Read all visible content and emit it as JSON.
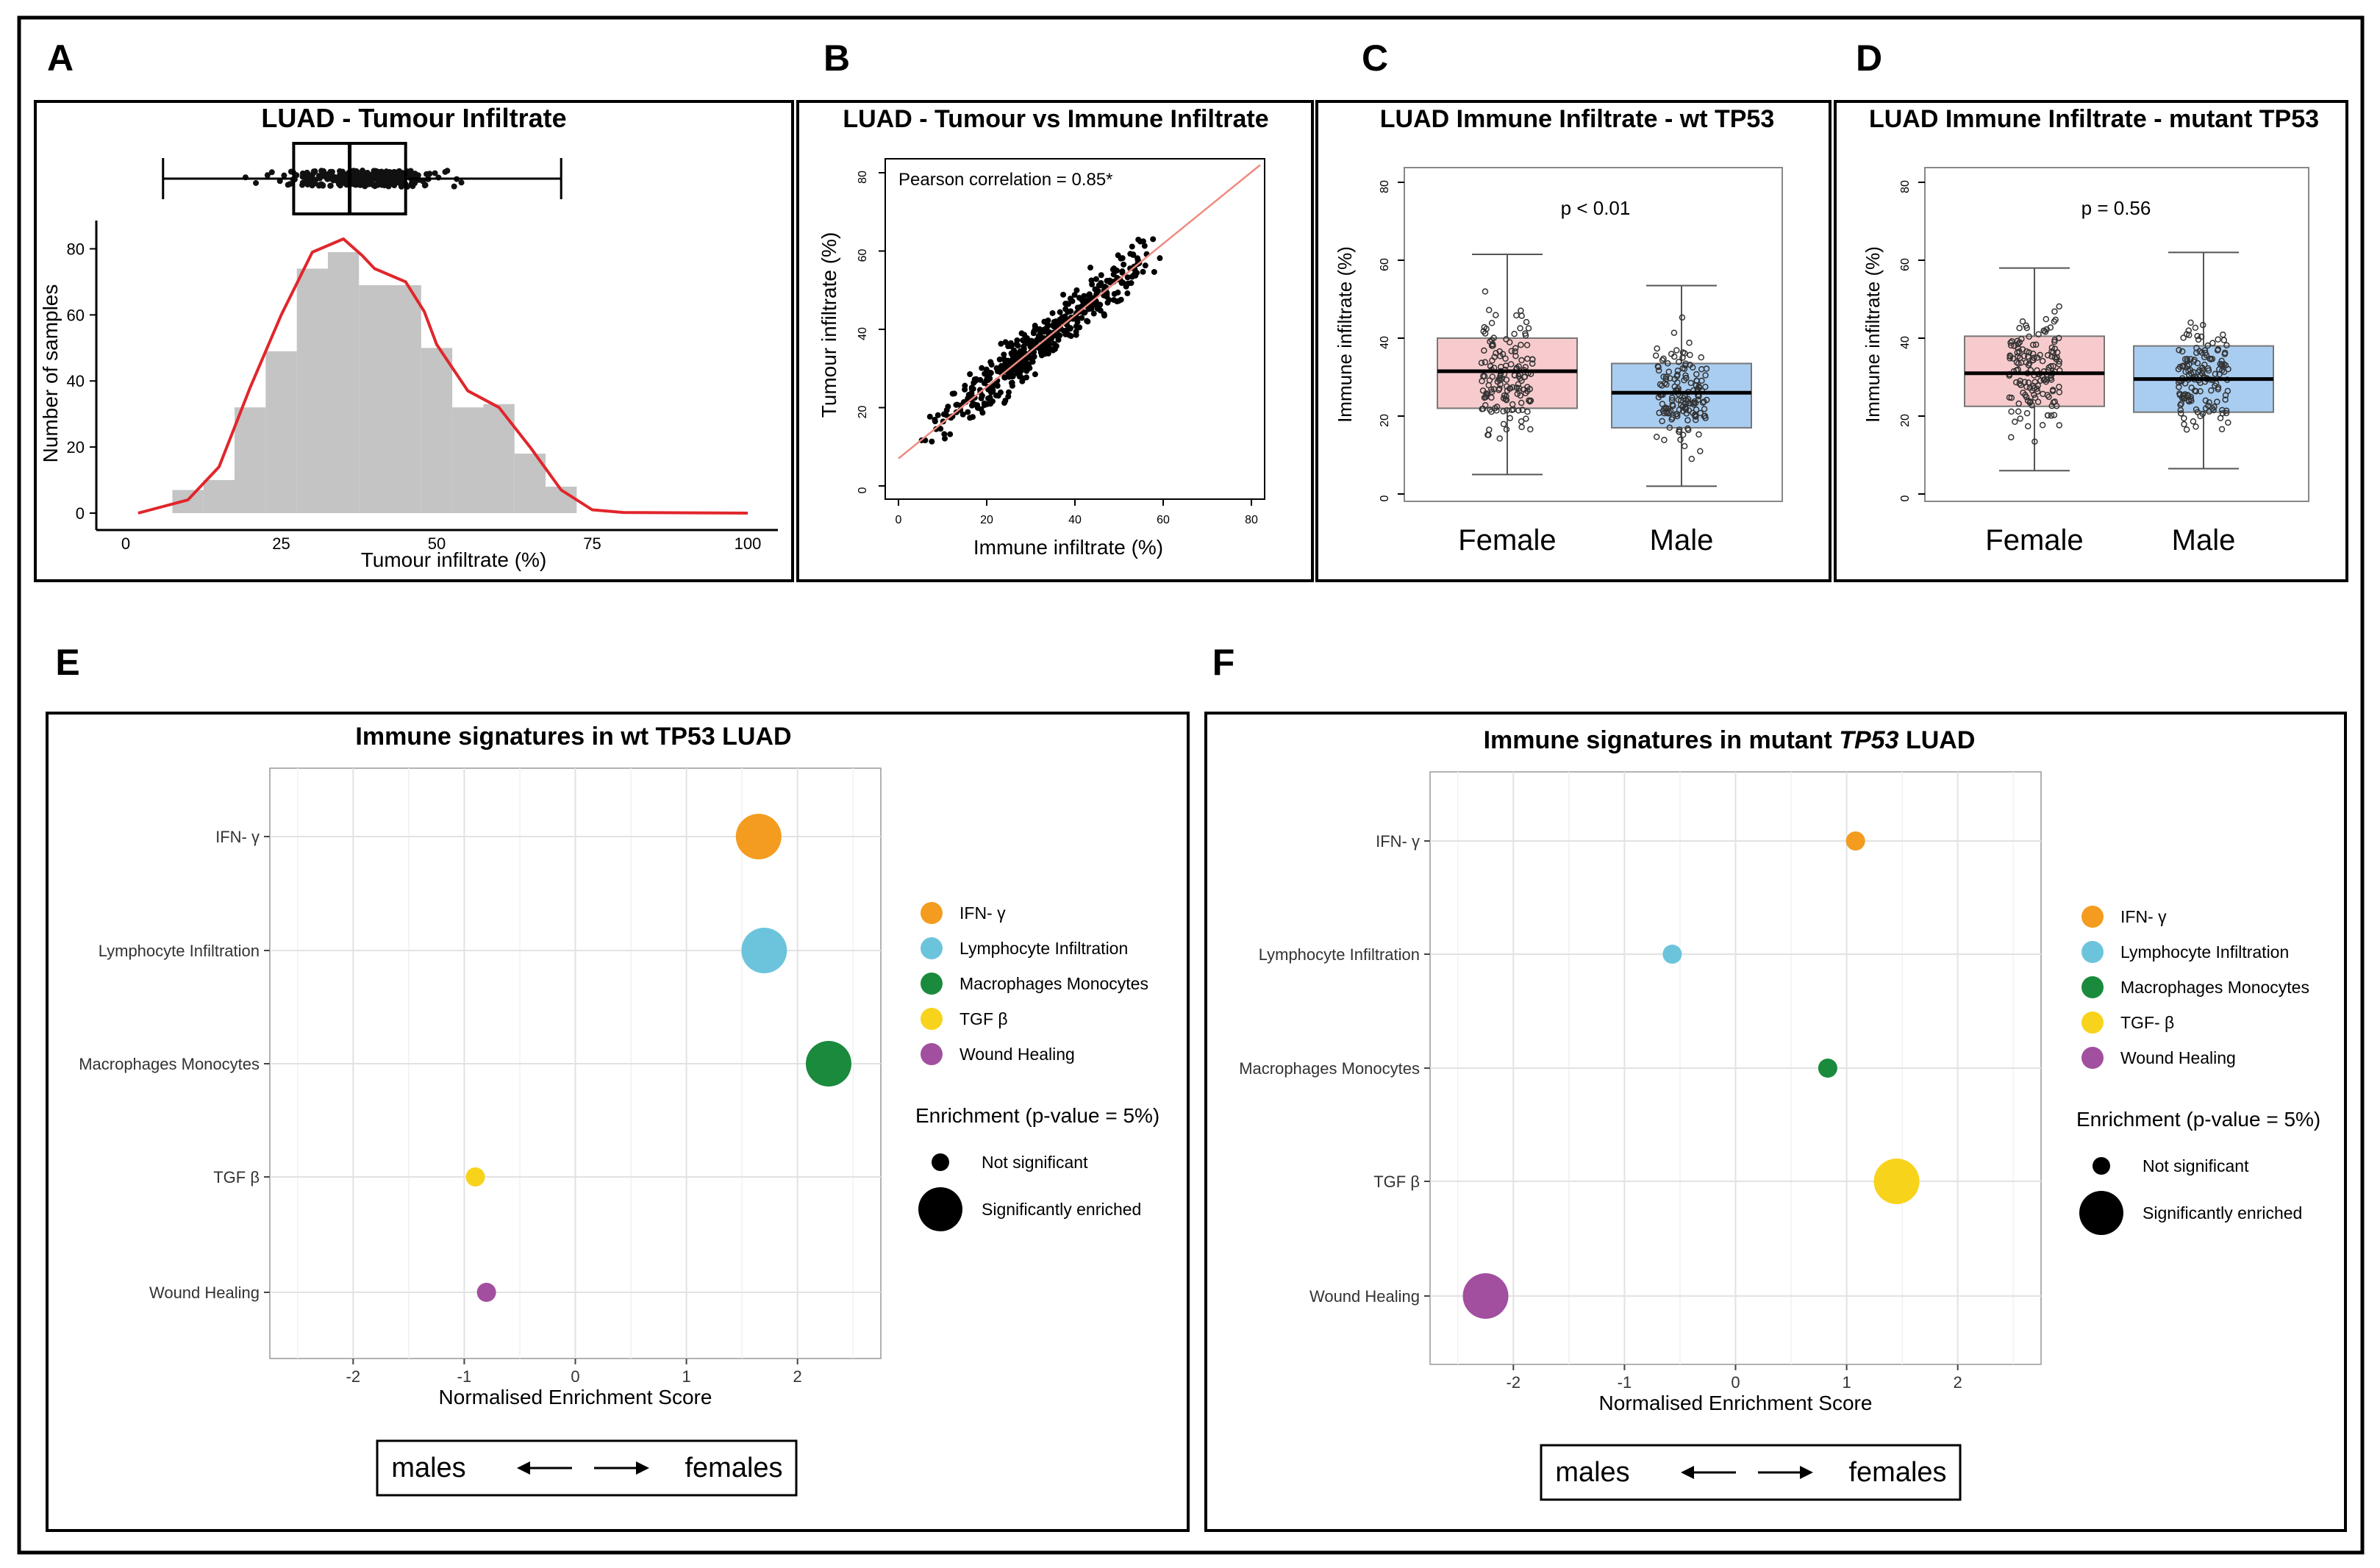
{
  "chart_data": [
    {
      "panel": "A",
      "type": "histogram",
      "title": "LUAD - Tumour Infiltrate",
      "xlabel": "Tumour infiltrate (%)",
      "ylabel": "Number of samples",
      "xlim": [
        0,
        100
      ],
      "ylim": [
        0,
        85
      ],
      "xticks": [
        "0",
        "25",
        "50",
        "75",
        "100"
      ],
      "yticks": [
        "0",
        "20",
        "40",
        "60",
        "80"
      ],
      "bin_width": 5,
      "bins": [
        {
          "x0": 7.5,
          "x1": 12.5,
          "count": 7
        },
        {
          "x0": 12.5,
          "x1": 17.5,
          "count": 10
        },
        {
          "x0": 17.5,
          "x1": 22.5,
          "count": 32
        },
        {
          "x0": 22.5,
          "x1": 27.5,
          "count": 49
        },
        {
          "x0": 27.5,
          "x1": 32.5,
          "count": 74
        },
        {
          "x0": 32.5,
          "x1": 37.5,
          "count": 79
        },
        {
          "x0": 37.5,
          "x1": 42.5,
          "count": 69
        },
        {
          "x0": 42.5,
          "x1": 47.5,
          "count": 69
        },
        {
          "x0": 47.5,
          "x1": 52.5,
          "count": 50
        },
        {
          "x0": 52.5,
          "x1": 57.5,
          "count": 32
        },
        {
          "x0": 57.5,
          "x1": 62.5,
          "count": 33
        },
        {
          "x0": 62.5,
          "x1": 67.5,
          "count": 18
        },
        {
          "x0": 67.5,
          "x1": 72.5,
          "count": 8
        }
      ],
      "density_curve": [
        [
          2,
          0
        ],
        [
          10,
          4
        ],
        [
          15,
          14
        ],
        [
          20,
          38
        ],
        [
          25,
          60
        ],
        [
          30,
          79
        ],
        [
          35,
          83
        ],
        [
          38,
          78
        ],
        [
          40,
          74
        ],
        [
          45,
          70
        ],
        [
          48,
          61
        ],
        [
          50,
          51
        ],
        [
          55,
          37
        ],
        [
          60,
          32
        ],
        [
          65,
          20
        ],
        [
          70,
          7
        ],
        [
          75,
          1
        ],
        [
          80,
          0.2
        ],
        [
          100,
          0
        ]
      ],
      "boxplot": {
        "min": 6,
        "q1": 27,
        "median": 36,
        "q3": 45,
        "max": 70
      }
    },
    {
      "panel": "B",
      "type": "scatter",
      "title": "LUAD - Tumour vs Immune Infiltrate",
      "xlabel": "Immune infiltrate (%)",
      "ylabel": "Tumour infiltrate (%)",
      "xlim": [
        0,
        80
      ],
      "ylim": [
        0,
        80
      ],
      "xticks": [
        "0",
        "20",
        "40",
        "60",
        "80"
      ],
      "yticks": [
        "0",
        "20",
        "40",
        "60",
        "80"
      ],
      "annotation": "Pearson correlation = 0.85*",
      "fit_line": [
        [
          0,
          7
        ],
        [
          82,
          82
        ]
      ],
      "n_points": 480
    },
    {
      "panel": "C",
      "type": "boxplot",
      "title": "LUAD Immune Infiltrate - wt TP53",
      "ylabel": "Immune infiltrate (%)",
      "ylim": [
        0,
        80
      ],
      "yticks": [
        "0",
        "20",
        "40",
        "60",
        "80"
      ],
      "pvalue": "p < 0.01",
      "groups": [
        {
          "name": "Female",
          "min": 5,
          "q1": 22,
          "median": 31.5,
          "q3": 40,
          "max": 61.5,
          "color": "#f7cbcd"
        },
        {
          "name": "Male",
          "min": 2,
          "q1": 17,
          "median": 26,
          "q3": 33.5,
          "max": 53.5,
          "color": "#a9cdf0"
        }
      ]
    },
    {
      "panel": "D",
      "type": "boxplot",
      "title": "LUAD Immune Infiltrate - mutant TP53",
      "ylabel": "Immune infiltrate (%)",
      "ylim": [
        0,
        80
      ],
      "yticks": [
        "0",
        "20",
        "40",
        "60",
        "80"
      ],
      "pvalue": "p = 0.56",
      "groups": [
        {
          "name": "Female",
          "min": 6,
          "q1": 22.5,
          "median": 31,
          "q3": 40.5,
          "max": 58,
          "color": "#f7cbcd"
        },
        {
          "name": "Male",
          "min": 6.5,
          "q1": 21,
          "median": 29.5,
          "q3": 38,
          "max": 62,
          "color": "#a9cdf0"
        }
      ]
    },
    {
      "panel": "E",
      "type": "dot",
      "title": "Immune signatures in wt TP53 LUAD",
      "xlabel": "Normalised Enrichment Score",
      "xlim": [
        -2.75,
        2.75
      ],
      "xticks": [
        "-2",
        "-1",
        "0",
        "1",
        "2"
      ],
      "categories": [
        "IFN- γ",
        "Lymphocyte Infiltration",
        "Macrophages Monocytes",
        "TGF β",
        "Wound Healing"
      ],
      "points": [
        {
          "category": "IFN- γ",
          "nes": 1.65,
          "significant": true,
          "color": "#f39c1f"
        },
        {
          "category": "Lymphocyte Infiltration",
          "nes": 1.7,
          "significant": true,
          "color": "#6cc4dc"
        },
        {
          "category": "Macrophages Monocytes",
          "nes": 2.28,
          "significant": true,
          "color": "#1a8a3c"
        },
        {
          "category": "TGF β",
          "nes": -0.9,
          "significant": false,
          "color": "#f7d31c"
        },
        {
          "category": "Wound Healing",
          "nes": -0.8,
          "significant": false,
          "color": "#a24f9f"
        }
      ],
      "legend_title": "Enrichment (p-value = 5%)",
      "legend_sizes": [
        "Not significant",
        "Significantly enriched"
      ],
      "direction": {
        "left": "males",
        "right": "females"
      }
    },
    {
      "panel": "F",
      "type": "dot",
      "title_plain": "Immune signatures in mutant ",
      "title_italic": "TP53",
      "title_end": " LUAD",
      "xlabel": "Normalised Enrichment Score",
      "xlim": [
        -2.75,
        2.75
      ],
      "xticks": [
        "-2",
        "-1",
        "0",
        "1",
        "2"
      ],
      "categories": [
        "IFN- γ",
        "Lymphocyte Infiltration",
        "Macrophages Monocytes",
        "TGF β",
        "Wound Healing"
      ],
      "legend_labels": [
        "IFN- γ",
        "Lymphocyte Infiltration",
        "Macrophages Monocytes",
        "TGF- β",
        "Wound Healing"
      ],
      "points": [
        {
          "category": "IFN- γ",
          "nes": 1.08,
          "significant": false,
          "color": "#f39c1f"
        },
        {
          "category": "Lymphocyte Infiltration",
          "nes": -0.57,
          "significant": false,
          "color": "#6cc4dc"
        },
        {
          "category": "Macrophages Monocytes",
          "nes": 0.83,
          "significant": false,
          "color": "#1a8a3c"
        },
        {
          "category": "TGF β",
          "nes": 1.45,
          "significant": true,
          "color": "#f7d31c"
        },
        {
          "category": "Wound Healing",
          "nes": -2.25,
          "significant": true,
          "color": "#a24f9f"
        }
      ],
      "legend_title": "Enrichment (p-value = 5%)",
      "legend_sizes": [
        "Not significant",
        "Significantly enriched"
      ],
      "direction": {
        "left": "males",
        "right": "females"
      }
    }
  ],
  "panel_letters": [
    "A",
    "B",
    "C",
    "D",
    "E",
    "F"
  ],
  "colors": {
    "hist_fill": "#c4c4c4",
    "density": "#e0262b",
    "fit_line": "#f08a80",
    "grid": "#e6e6e6"
  }
}
